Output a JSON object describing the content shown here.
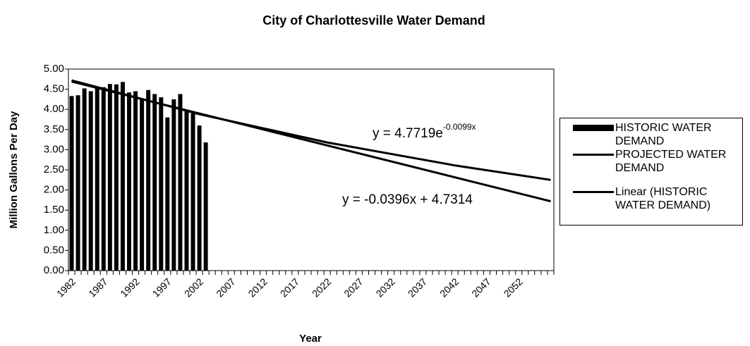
{
  "chart_data": {
    "type": "bar",
    "title": "City of Charlottesville Water Demand",
    "x_label": "Year",
    "y_label": "Million Gallons Per Day",
    "categories": [
      "1982",
      null,
      null,
      null,
      null,
      "1987",
      null,
      null,
      null,
      null,
      "1992",
      null,
      null,
      null,
      null,
      "1997",
      null,
      null,
      null,
      null,
      "2002",
      null,
      null,
      null,
      null,
      "2007",
      null,
      null,
      null,
      null,
      "2012",
      null,
      null,
      null,
      null,
      "2017",
      null,
      null,
      null,
      null,
      "2022",
      null,
      null,
      null,
      null,
      "2027",
      null,
      null,
      null,
      null,
      "2032",
      null,
      null,
      null,
      null,
      "2037",
      null,
      null,
      null,
      null,
      "2042",
      null,
      null,
      null,
      null,
      "2047",
      null,
      null,
      null,
      null,
      "2052",
      null,
      null,
      null,
      null,
      null
    ],
    "series": [
      {
        "name": "HISTORIC WATER DEMAND",
        "type": "bar",
        "color": "#000000",
        "values": [
          4.33,
          4.35,
          4.52,
          4.45,
          4.55,
          4.55,
          4.63,
          4.62,
          4.68,
          4.42,
          4.45,
          4.25,
          4.48,
          4.38,
          4.3,
          3.8,
          4.25,
          4.38,
          3.95,
          3.9,
          3.6,
          3.18,
          null,
          null,
          null,
          null,
          null,
          null,
          null,
          null,
          null,
          null,
          null,
          null,
          null,
          null,
          null,
          null,
          null,
          null,
          null,
          null,
          null,
          null,
          null,
          null,
          null,
          null,
          null,
          null,
          null,
          null,
          null,
          null,
          null,
          null,
          null,
          null,
          null,
          null,
          null,
          null,
          null,
          null,
          null,
          null,
          null,
          null,
          null,
          null,
          null,
          null,
          null,
          null,
          null,
          null
        ]
      },
      {
        "name": "PROJECTED WATER DEMAND",
        "type": "line",
        "color": "#000000",
        "x": [
          1982,
          2002,
          2022,
          2042,
          2057
        ],
        "values": [
          4.72,
          3.88,
          3.18,
          2.61,
          2.25
        ]
      },
      {
        "name": "Linear (HISTORIC WATER DEMAND)",
        "type": "line",
        "color": "#000000",
        "x": [
          1982,
          2057
        ],
        "values": [
          4.69,
          1.72
        ]
      }
    ],
    "annotations": [
      {
        "text": "y = 4.7719e",
        "superscript": "-0.0099x"
      },
      {
        "text": "y = -0.0396x + 4.7314"
      }
    ],
    "ylim": [
      0,
      5
    ],
    "yticks": [
      {
        "value": 0,
        "label": "0.00"
      },
      {
        "value": 0.5,
        "label": "0.50"
      },
      {
        "value": 1,
        "label": "1.00"
      },
      {
        "value": 1.5,
        "label": "1.50"
      },
      {
        "value": 2,
        "label": "2.00"
      },
      {
        "value": 2.5,
        "label": "2.50"
      },
      {
        "value": 3,
        "label": "3.00"
      },
      {
        "value": 3.5,
        "label": "3.50"
      },
      {
        "value": 4,
        "label": "4.00"
      },
      {
        "value": 4.5,
        "label": "4.50"
      },
      {
        "value": 5,
        "label": "5.00"
      }
    ],
    "grid": false,
    "legend": "right"
  }
}
